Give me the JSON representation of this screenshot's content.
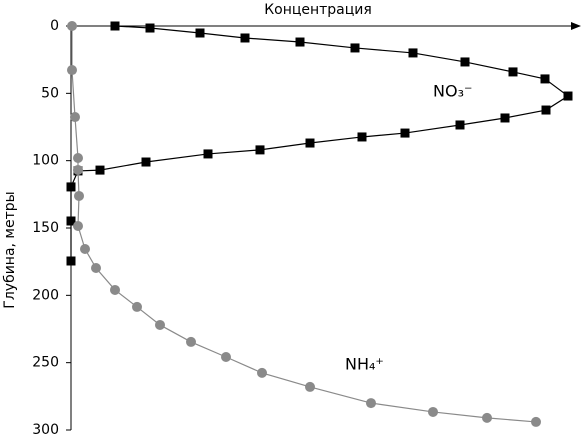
{
  "chart_data": {
    "type": "line",
    "x_label": "Концентрация",
    "y_label": "Глубина, метры",
    "xlim": [
      0,
      100
    ],
    "ylim": [
      0,
      300
    ],
    "yticks": [
      0,
      50,
      100,
      150,
      200,
      250,
      300
    ],
    "series": [
      {
        "name": "NO₃⁻",
        "color": "#000000",
        "marker": "square",
        "x": [
          8.8,
          15.8,
          25.8,
          34.8,
          45.8,
          56.8,
          68.4,
          78.8,
          88.4,
          94.8,
          99.4,
          95,
          86.8,
          77.8,
          66.8,
          58.2,
          47.8,
          37.8,
          27.4,
          15,
          5.8,
          1.4,
          0,
          0,
          0
        ],
        "values": [
          0,
          1.5,
          5.2,
          8.9,
          11.9,
          16.3,
          20,
          26.7,
          34.1,
          39.3,
          52,
          62.4,
          68.3,
          73.5,
          79.5,
          82.4,
          86.9,
          92,
          95,
          101,
          107,
          107.6,
          119.5,
          144.8,
          174.5
        ]
      },
      {
        "name": "NH₄⁺",
        "color": "#8a8a8a",
        "marker": "circle",
        "x": [
          0.2,
          0.2,
          0.8,
          1.4,
          1.4,
          1.6,
          1.4,
          2.8,
          5,
          8.8,
          13.2,
          17.8,
          24,
          31,
          38.2,
          47.8,
          60,
          72.4,
          83.2,
          93
        ],
        "values": [
          0,
          32.7,
          67.6,
          98,
          106.9,
          126.2,
          148.5,
          165.6,
          179.7,
          196,
          208.6,
          222,
          234.6,
          245.8,
          257.6,
          268,
          280,
          286.6,
          291,
          294
        ]
      }
    ]
  }
}
